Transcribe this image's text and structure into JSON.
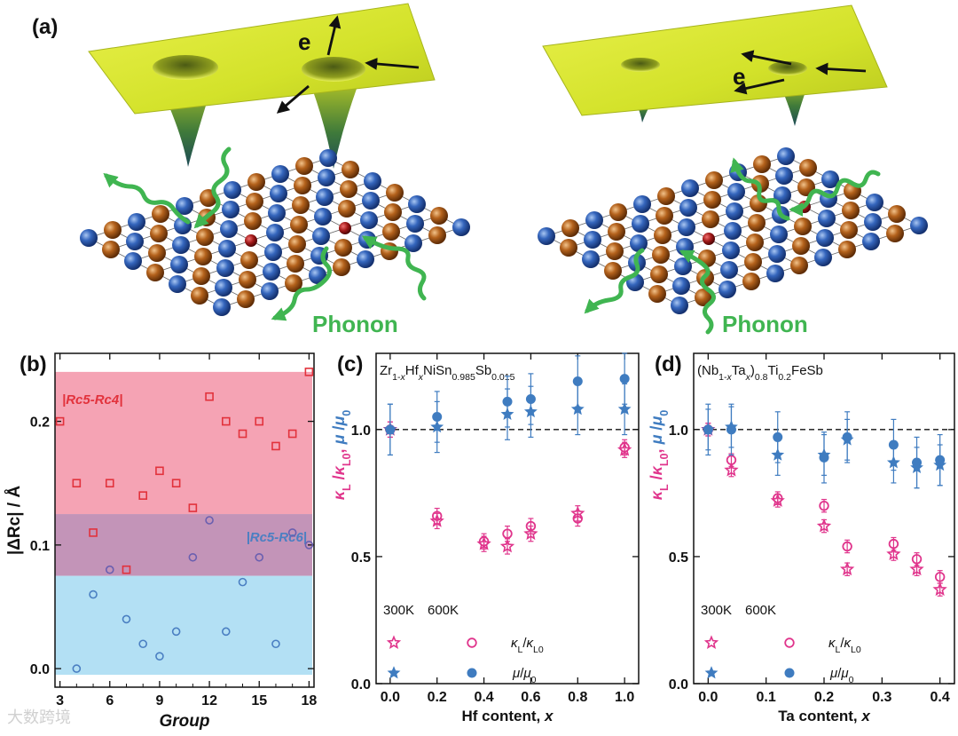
{
  "figure": {
    "panel_a_label": "(a)",
    "electron_label": "e",
    "phonon_label": "Phonon",
    "watermark": "大数跨境"
  },
  "colors": {
    "pink": "#e0358c",
    "blue": "#3f7cc0",
    "red_square": "#e2323c",
    "purple_circle": "#6a5fb0",
    "blue_circle": "#4a7fc2",
    "red_band": "#f5a3b4",
    "purple_band": "#c394b8",
    "blue_band": "#b3e0f4",
    "phonon_green": "#40b551",
    "yellow_surface": "#d7e62b",
    "atom_blue": "#2f63b8",
    "atom_brown": "#b4621c",
    "atom_red": "#a01818"
  },
  "chart_data": [
    {
      "panel": "(b)",
      "type": "scatter",
      "xlabel": "Group",
      "ylabel": "|ΔRc| / Å",
      "xlim": [
        2.7,
        18.3
      ],
      "ylim": [
        -0.015,
        0.255
      ],
      "xticks": [
        3,
        6,
        9,
        12,
        15,
        18
      ],
      "yticks": [
        0.0,
        0.1,
        0.2
      ],
      "ytick_labels": [
        "0.0",
        "0.1",
        "0.2"
      ],
      "bands": [
        {
          "ymin": 0.125,
          "ymax": 0.24,
          "color": "red_band"
        },
        {
          "ymin": 0.075,
          "ymax": 0.125,
          "color": "purple_band"
        },
        {
          "ymin": -0.005,
          "ymax": 0.075,
          "color": "blue_band"
        }
      ],
      "series": [
        {
          "name": "|Rc5-Rc4|",
          "marker": "square",
          "x": [
            3,
            4,
            5,
            6,
            7,
            8,
            9,
            10,
            11,
            12,
            13,
            14,
            15,
            16,
            17,
            18
          ],
          "y": [
            0.2,
            0.15,
            0.11,
            0.15,
            0.08,
            0.14,
            0.16,
            0.15,
            0.13,
            0.22,
            0.2,
            0.19,
            0.2,
            0.18,
            0.19,
            0.24
          ]
        },
        {
          "name": "|Rc5-Rc6|",
          "marker": "circle",
          "x": [
            4,
            5,
            6,
            7,
            8,
            9,
            10,
            11,
            12,
            13,
            14,
            15,
            16,
            17,
            18
          ],
          "y": [
            0.0,
            0.06,
            0.08,
            0.04,
            0.02,
            0.01,
            0.03,
            0.09,
            0.12,
            0.03,
            0.07,
            0.09,
            0.02,
            0.11,
            0.1
          ]
        }
      ],
      "annotations": {
        "red": "|Rc5-Rc4|",
        "blue": "|Rc5-Rc6|"
      }
    },
    {
      "panel": "(c)",
      "type": "scatter",
      "title": "Zr1-xHfxNiSn0.985Sb0.015",
      "xlabel": "Hf content, x",
      "ylabel": "κL/κL0, μ/μ0",
      "xlim": [
        -0.06,
        1.06
      ],
      "ylim": [
        0.0,
        1.3
      ],
      "xticks": [
        0.0,
        0.2,
        0.4,
        0.6,
        0.8,
        1.0
      ],
      "xtick_labels": [
        "0.0",
        "0.2",
        "0.4",
        "0.6",
        "0.8",
        "1.0"
      ],
      "yticks": [
        0.0,
        0.5,
        1.0
      ],
      "ytick_labels": [
        "0.0",
        "0.5",
        "1.0"
      ],
      "reference_line": 1.0,
      "series": [
        {
          "name": "κL/κL0 300K",
          "marker": "star-open",
          "color": "pink",
          "x": [
            0.0,
            0.2,
            0.4,
            0.5,
            0.6,
            0.8,
            1.0
          ],
          "y": [
            1.0,
            0.64,
            0.55,
            0.54,
            0.59,
            0.67,
            0.92
          ],
          "err": 0.03
        },
        {
          "name": "κL/κL0 600K",
          "marker": "circle-open",
          "color": "pink",
          "x": [
            0.0,
            0.2,
            0.4,
            0.5,
            0.6,
            0.8,
            1.0
          ],
          "y": [
            1.0,
            0.66,
            0.56,
            0.59,
            0.62,
            0.65,
            0.93
          ],
          "err": 0.03
        },
        {
          "name": "μ/μ0 300K",
          "marker": "star-filled",
          "color": "blue",
          "x": [
            0.0,
            0.2,
            0.5,
            0.6,
            0.8,
            1.0
          ],
          "y": [
            1.0,
            1.01,
            1.06,
            1.07,
            1.08,
            1.08
          ],
          "err": 0.1
        },
        {
          "name": "μ/μ0 600K",
          "marker": "circle-filled",
          "color": "blue",
          "x": [
            0.0,
            0.2,
            0.5,
            0.6,
            0.8,
            1.0
          ],
          "y": [
            1.0,
            1.05,
            1.11,
            1.12,
            1.19,
            1.2
          ],
          "err": 0.1
        }
      ],
      "legend": {
        "col1": "300K",
        "col2": "600K",
        "row1": "κL/κL0",
        "row2": "μ/μ0"
      }
    },
    {
      "panel": "(d)",
      "type": "scatter",
      "title": "(Nb1-xTax)0.8Ti0.2FeSb",
      "xlabel": "Ta content, x",
      "ylabel": "κL/κL0, μ/μ0",
      "xlim": [
        -0.025,
        0.425
      ],
      "ylim": [
        0.0,
        1.3
      ],
      "xticks": [
        0.0,
        0.1,
        0.2,
        0.3,
        0.4
      ],
      "xtick_labels": [
        "0.0",
        "0.1",
        "0.2",
        "0.3",
        "0.4"
      ],
      "yticks": [
        0.0,
        0.5,
        1.0
      ],
      "ytick_labels": [
        "0.0",
        "0.5",
        "1.0"
      ],
      "reference_line": 1.0,
      "series": [
        {
          "name": "κL/κL0 300K",
          "marker": "star-open",
          "color": "pink",
          "x": [
            0.0,
            0.04,
            0.12,
            0.2,
            0.24,
            0.32,
            0.36,
            0.4
          ],
          "y": [
            1.0,
            0.84,
            0.72,
            0.62,
            0.45,
            0.51,
            0.45,
            0.37
          ],
          "err": 0.025
        },
        {
          "name": "κL/κL0 600K",
          "marker": "circle-open",
          "color": "pink",
          "x": [
            0.0,
            0.04,
            0.12,
            0.2,
            0.24,
            0.32,
            0.36,
            0.4
          ],
          "y": [
            1.0,
            0.88,
            0.73,
            0.7,
            0.54,
            0.55,
            0.49,
            0.42
          ],
          "err": 0.025
        },
        {
          "name": "μ/μ0 300K",
          "marker": "star-filled",
          "color": "blue",
          "x": [
            0.0,
            0.04,
            0.12,
            0.2,
            0.24,
            0.32,
            0.36,
            0.4
          ],
          "y": [
            1.0,
            1.01,
            0.9,
            0.9,
            0.96,
            0.87,
            0.85,
            0.86
          ],
          "err": 0.08
        },
        {
          "name": "μ/μ0 600K",
          "marker": "circle-filled",
          "color": "blue",
          "x": [
            0.0,
            0.04,
            0.12,
            0.2,
            0.24,
            0.32,
            0.36,
            0.4
          ],
          "y": [
            1.0,
            1.0,
            0.97,
            0.89,
            0.97,
            0.94,
            0.87,
            0.88
          ],
          "err": 0.1
        }
      ],
      "legend": {
        "col1": "300K",
        "col2": "600K",
        "row1": "κL/κL0",
        "row2": "μ/μ0"
      }
    }
  ]
}
